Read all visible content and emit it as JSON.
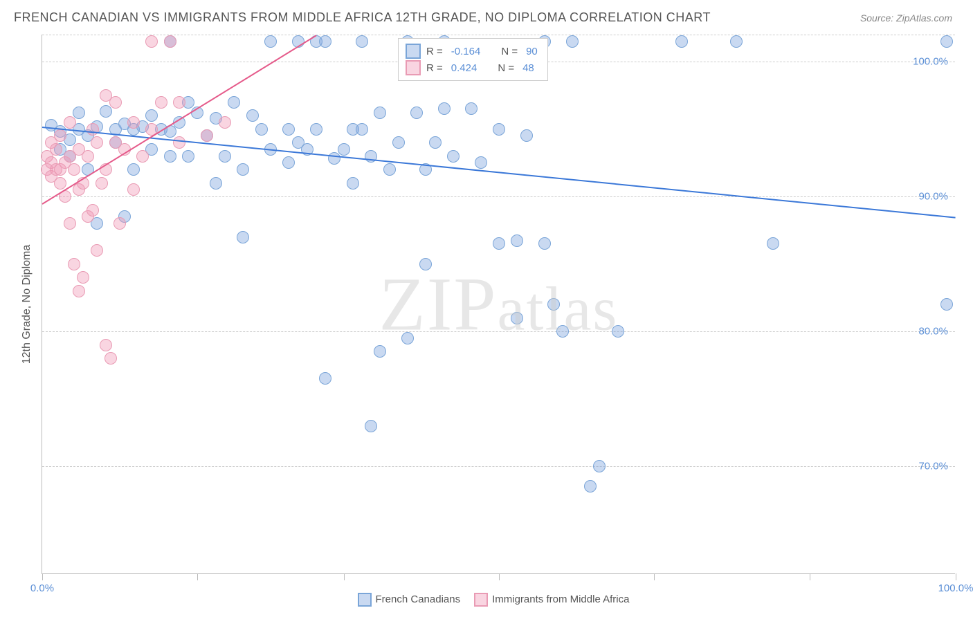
{
  "title": "FRENCH CANADIAN VS IMMIGRANTS FROM MIDDLE AFRICA 12TH GRADE, NO DIPLOMA CORRELATION CHART",
  "source": "Source: ZipAtlas.com",
  "watermark": "ZIPatlas",
  "ylabel": "12th Grade, No Diploma",
  "chart": {
    "type": "scatter",
    "xlim": [
      0,
      100
    ],
    "ylim": [
      62,
      102
    ],
    "xtick_label_min": "0.0%",
    "xtick_label_max": "100.0%",
    "xtick_positions": [
      0,
      17,
      33,
      50,
      67,
      84,
      100
    ],
    "yticks": [
      70,
      80,
      90,
      100
    ],
    "ytick_labels": [
      "70.0%",
      "80.0%",
      "90.0%",
      "100.0%"
    ],
    "grid_color": "#cccccc",
    "background": "#ffffff",
    "point_radius": 9,
    "series": [
      {
        "key": "blue",
        "label": "French Canadians",
        "fill": "rgba(120,160,220,0.40)",
        "stroke": "#7aa5d8",
        "trend_color": "#3b78d8",
        "R": "-0.164",
        "N": "90",
        "trend": {
          "x1": 0,
          "y1": 95.2,
          "x2": 100,
          "y2": 88.5
        },
        "points": [
          [
            1,
            95.3
          ],
          [
            2,
            93.5
          ],
          [
            2,
            94.8
          ],
          [
            3,
            93.0
          ],
          [
            3,
            94.2
          ],
          [
            4,
            95.0
          ],
          [
            4,
            96.2
          ],
          [
            5,
            92.0
          ],
          [
            5,
            94.5
          ],
          [
            6,
            88.0
          ],
          [
            6,
            95.2
          ],
          [
            7,
            96.3
          ],
          [
            8,
            94.0
          ],
          [
            8,
            95.0
          ],
          [
            9,
            95.4
          ],
          [
            9,
            88.5
          ],
          [
            10,
            95.0
          ],
          [
            10,
            92.0
          ],
          [
            11,
            95.2
          ],
          [
            12,
            96.0
          ],
          [
            12,
            93.5
          ],
          [
            13,
            95.0
          ],
          [
            14,
            93.0
          ],
          [
            14,
            94.8
          ],
          [
            14,
            101.5
          ],
          [
            15,
            95.5
          ],
          [
            16,
            97.0
          ],
          [
            16,
            93.0
          ],
          [
            17,
            96.2
          ],
          [
            18,
            94.5
          ],
          [
            19,
            95.8
          ],
          [
            19,
            91.0
          ],
          [
            20,
            93.0
          ],
          [
            21,
            97.0
          ],
          [
            22,
            92.0
          ],
          [
            22,
            87.0
          ],
          [
            23,
            96.0
          ],
          [
            24,
            95.0
          ],
          [
            25,
            93.5
          ],
          [
            25,
            101.5
          ],
          [
            27,
            92.5
          ],
          [
            27,
            95.0
          ],
          [
            28,
            101.5
          ],
          [
            28,
            94.0
          ],
          [
            29,
            93.5
          ],
          [
            30,
            95.0
          ],
          [
            30,
            101.5
          ],
          [
            31,
            101.5
          ],
          [
            31,
            76.5
          ],
          [
            32,
            92.8
          ],
          [
            33,
            93.5
          ],
          [
            34,
            95.0
          ],
          [
            34,
            91.0
          ],
          [
            35,
            101.5
          ],
          [
            35,
            95.0
          ],
          [
            36,
            93.0
          ],
          [
            36,
            73.0
          ],
          [
            37,
            96.2
          ],
          [
            37,
            78.5
          ],
          [
            38,
            92.0
          ],
          [
            39,
            94.0
          ],
          [
            40,
            101.5
          ],
          [
            40,
            79.5
          ],
          [
            41,
            96.2
          ],
          [
            42,
            92.0
          ],
          [
            42,
            85.0
          ],
          [
            43,
            94.0
          ],
          [
            44,
            101.5
          ],
          [
            44,
            96.5
          ],
          [
            45,
            93.0
          ],
          [
            47,
            96.5
          ],
          [
            48,
            92.5
          ],
          [
            50,
            95.0
          ],
          [
            50,
            86.5
          ],
          [
            52,
            86.7
          ],
          [
            52,
            81.0
          ],
          [
            53,
            94.5
          ],
          [
            55,
            101.5
          ],
          [
            55,
            86.5
          ],
          [
            56,
            82.0
          ],
          [
            57,
            80.0
          ],
          [
            58,
            101.5
          ],
          [
            60,
            68.5
          ],
          [
            61,
            70.0
          ],
          [
            63,
            80.0
          ],
          [
            70,
            101.5
          ],
          [
            76,
            101.5
          ],
          [
            80,
            86.5
          ],
          [
            99,
            101.5
          ],
          [
            99,
            82.0
          ]
        ]
      },
      {
        "key": "pink",
        "label": "Immigrants from Middle Africa",
        "fill": "rgba(240,150,180,0.40)",
        "stroke": "#e99bb4",
        "trend_color": "#e55a8a",
        "R": "0.424",
        "N": "48",
        "trend": {
          "x1": 0,
          "y1": 89.5,
          "x2": 30,
          "y2": 102
        },
        "points": [
          [
            0.5,
            92.0
          ],
          [
            0.5,
            93.0
          ],
          [
            1,
            92.5
          ],
          [
            1,
            94.0
          ],
          [
            1,
            91.5
          ],
          [
            1.5,
            92.0
          ],
          [
            1.5,
            93.5
          ],
          [
            2,
            92.0
          ],
          [
            2,
            91.0
          ],
          [
            2,
            94.5
          ],
          [
            2.5,
            92.5
          ],
          [
            2.5,
            90.0
          ],
          [
            3,
            88.0
          ],
          [
            3,
            93.0
          ],
          [
            3,
            95.5
          ],
          [
            3.5,
            92.0
          ],
          [
            3.5,
            85.0
          ],
          [
            4,
            90.5
          ],
          [
            4,
            93.5
          ],
          [
            4,
            83.0
          ],
          [
            4.5,
            84.0
          ],
          [
            4.5,
            91.0
          ],
          [
            5,
            88.5
          ],
          [
            5,
            93.0
          ],
          [
            5.5,
            89.0
          ],
          [
            5.5,
            95.0
          ],
          [
            6,
            94.0
          ],
          [
            6,
            86.0
          ],
          [
            6.5,
            91.0
          ],
          [
            7,
            92.0
          ],
          [
            7,
            97.5
          ],
          [
            7,
            79.0
          ],
          [
            7.5,
            78.0
          ],
          [
            8,
            94.0
          ],
          [
            8,
            97.0
          ],
          [
            8.5,
            88.0
          ],
          [
            9,
            93.5
          ],
          [
            10,
            90.5
          ],
          [
            10,
            95.5
          ],
          [
            11,
            93.0
          ],
          [
            12,
            101.5
          ],
          [
            12,
            95.0
          ],
          [
            13,
            97.0
          ],
          [
            14,
            101.5
          ],
          [
            15,
            94.0
          ],
          [
            15,
            97.0
          ],
          [
            18,
            94.5
          ],
          [
            20,
            95.5
          ]
        ]
      }
    ],
    "legend_top": {
      "rows": [
        {
          "swatch_key": "blue",
          "r_label": "R =",
          "r_val": "-0.164",
          "n_label": "N =",
          "n_val": "90"
        },
        {
          "swatch_key": "pink",
          "r_label": "R =",
          "r_val": "0.424",
          "n_label": "N =",
          "n_val": "48"
        }
      ]
    }
  }
}
